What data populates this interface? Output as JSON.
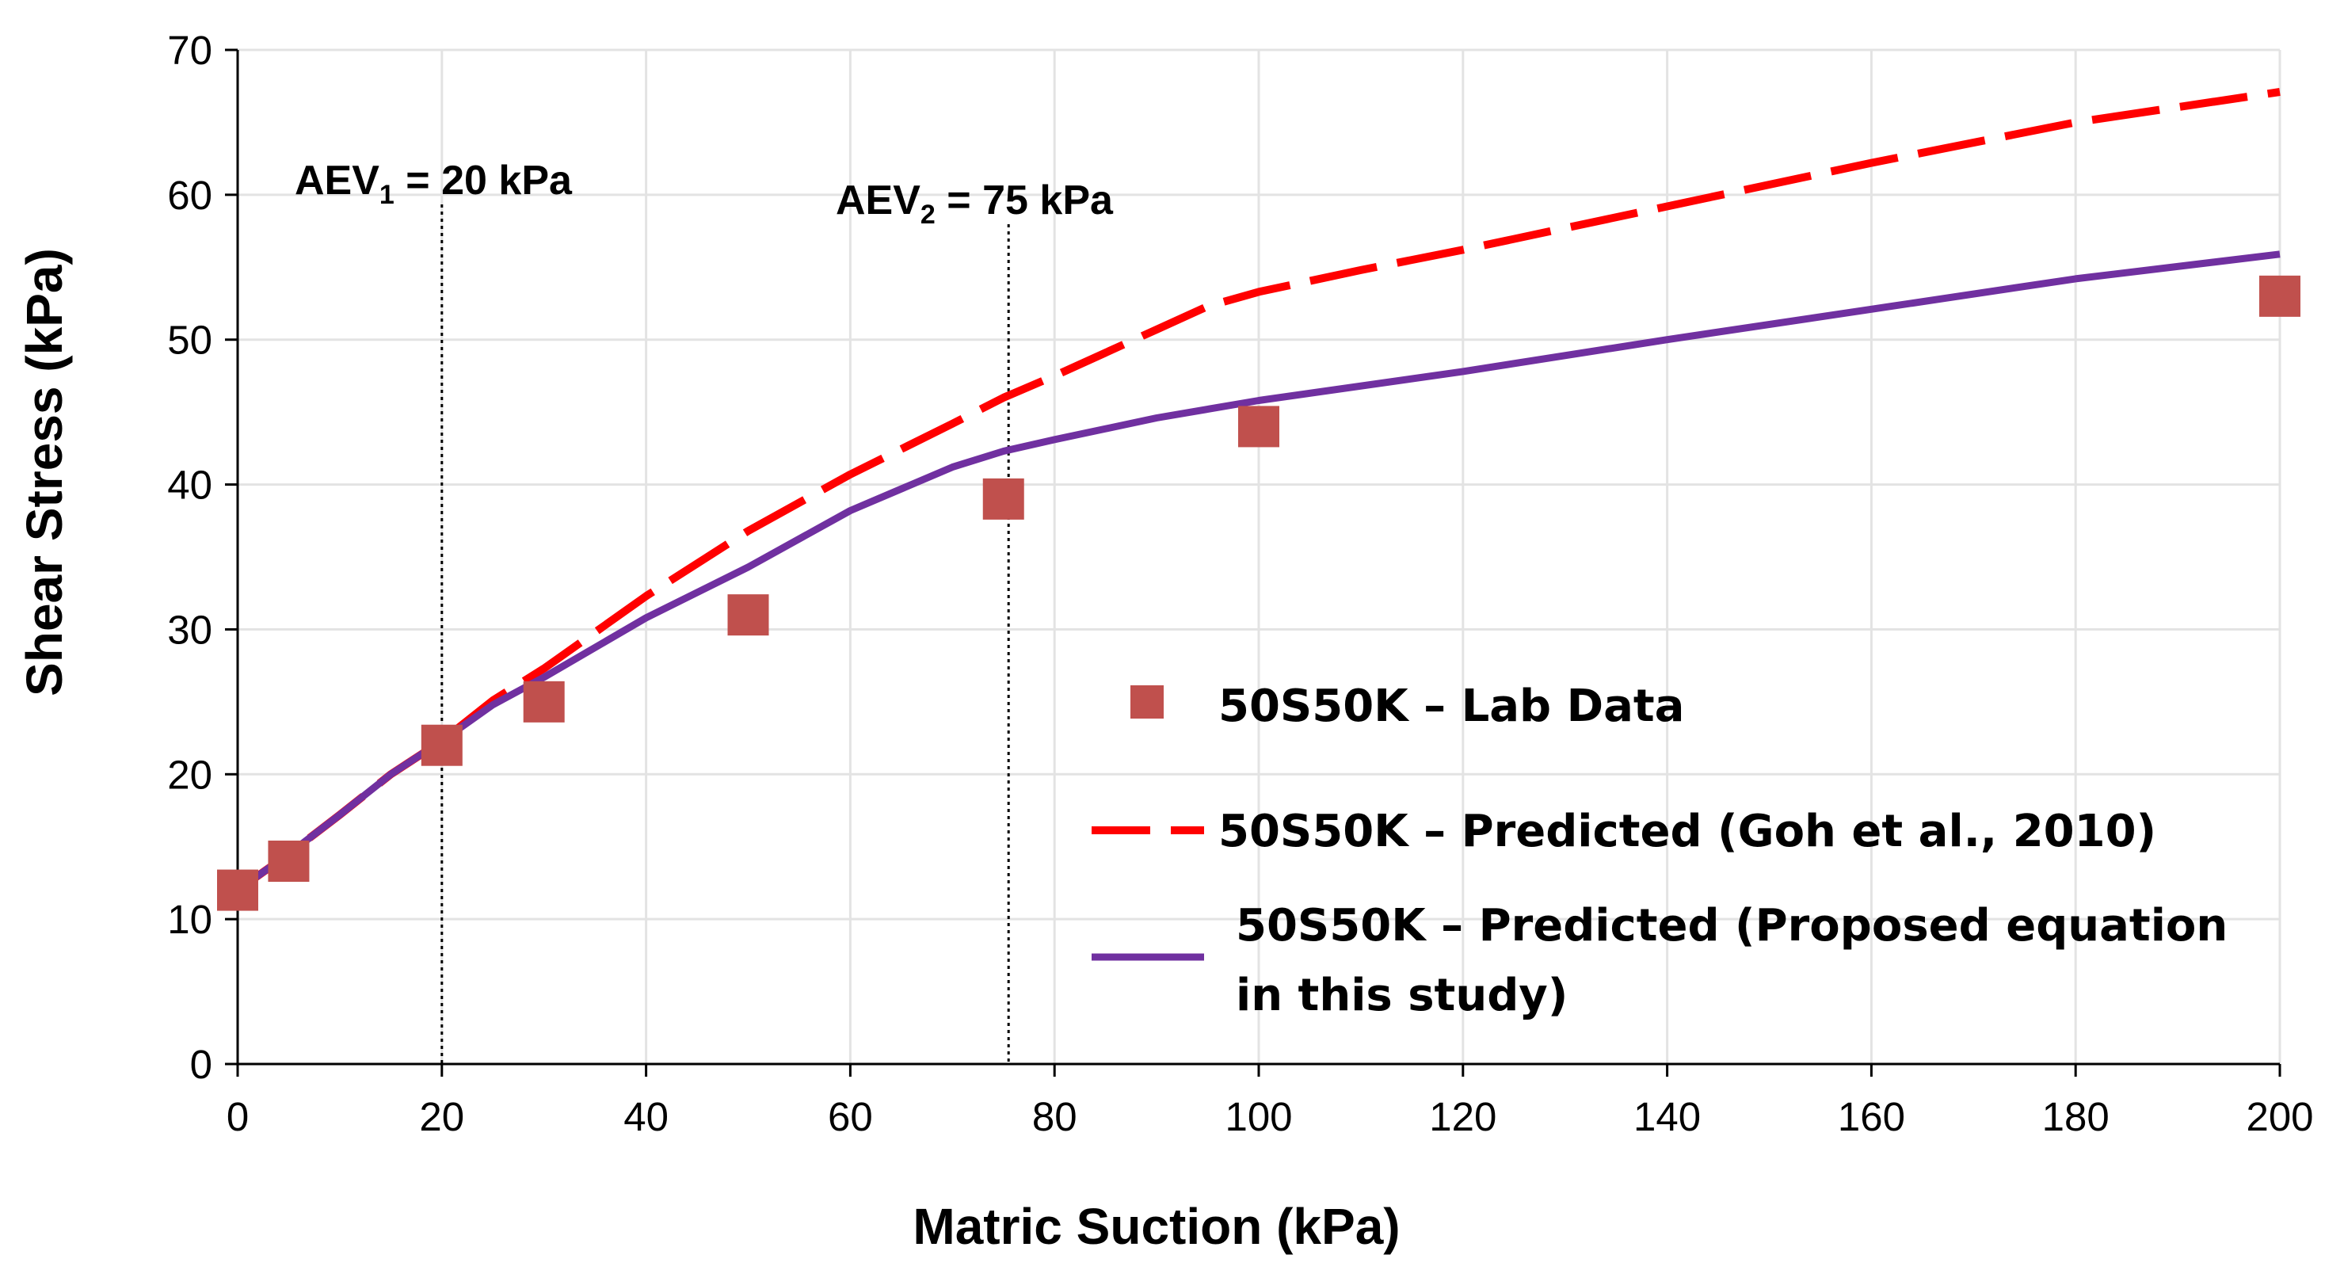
{
  "chart_data": {
    "type": "line",
    "title": "",
    "xlabel": "Matric Suction (kPa)",
    "ylabel": "Shear Stress (kPa)",
    "xlim": [
      0,
      200
    ],
    "ylim": [
      0,
      70
    ],
    "xticks": [
      "0",
      "20",
      "40",
      "60",
      "80",
      "100",
      "120",
      "140",
      "160",
      "180",
      "200"
    ],
    "yticks": [
      "0",
      "10",
      "20",
      "30",
      "40",
      "50",
      "60",
      "70"
    ],
    "grid": true,
    "legend_position": "center-right",
    "series": [
      {
        "name": "50S50K – Lab Data",
        "kind": "scatter",
        "marker": "square",
        "color": "#c0504d",
        "x": [
          0,
          5,
          20,
          30,
          50,
          75,
          100,
          200
        ],
        "y": [
          12,
          14,
          22,
          25,
          31,
          39,
          44,
          53
        ]
      },
      {
        "name": "50S50K – Predicted (Goh et al., 2010)",
        "kind": "line",
        "style": "dashed",
        "color": "#ff0000",
        "x": [
          0,
          5,
          10,
          15,
          20,
          25,
          30,
          40,
          50,
          60,
          70,
          75,
          80,
          90,
          95,
          100,
          110,
          120,
          140,
          160,
          180,
          200
        ],
        "y": [
          12,
          14.5,
          17.2,
          20,
          22.3,
          25.1,
          27.3,
          32.3,
          36.8,
          40.7,
          44.2,
          46,
          47.5,
          50.7,
          52.3,
          53.3,
          54.8,
          56.2,
          59.2,
          62.2,
          65,
          67.1
        ]
      },
      {
        "name": "50S50K – Predicted (Proposed equation in this study)",
        "kind": "line",
        "style": "solid",
        "color": "#7030a0",
        "x": [
          0,
          5,
          10,
          15,
          20,
          25,
          30,
          40,
          50,
          60,
          70,
          75,
          80,
          90,
          100,
          120,
          140,
          160,
          180,
          200
        ],
        "y": [
          12,
          14.5,
          17.2,
          20,
          22.3,
          24.8,
          26.7,
          30.8,
          34.3,
          38.2,
          41.2,
          42.3,
          43.1,
          44.6,
          45.8,
          47.8,
          50,
          52.1,
          54.2,
          55.9
        ]
      }
    ],
    "annotations": [
      {
        "label_main": "AEV",
        "label_sub": "1",
        "label_rest": " = 20 kPa",
        "x": 20
      },
      {
        "label_main": "AEV",
        "label_sub": "2",
        "label_rest": " = 75 kPa",
        "x": 75.5
      }
    ]
  }
}
